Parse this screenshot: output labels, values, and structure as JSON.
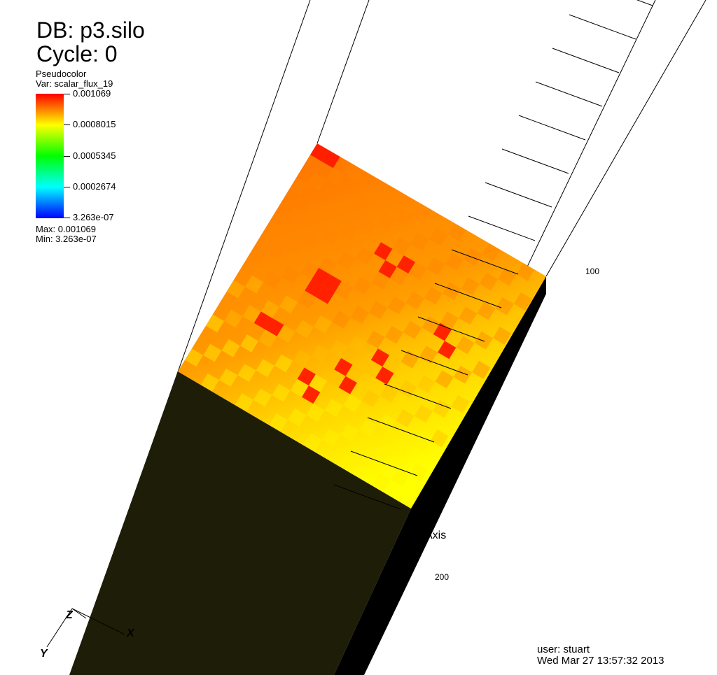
{
  "header": {
    "db": "DB: p3.silo",
    "cycle": "Cycle: 0"
  },
  "legend": {
    "plot_type": "Pseudocolor",
    "variable": "Var: scalar_flux_19",
    "ticks": [
      "0.001069",
      "0.0008015",
      "0.0005345",
      "0.0002674",
      "3.263e-07"
    ],
    "max": "Max:  0.001069",
    "min": "Min:  3.263e-07",
    "colors": [
      "#ff0000",
      "#ffff00",
      "#00ff00",
      "#00ffff",
      "#0000ff"
    ]
  },
  "axis": {
    "title": "Axis",
    "labels": [
      "100",
      "200"
    ]
  },
  "triad": {
    "x": "X",
    "y": "Y",
    "z": "Z"
  },
  "footer": {
    "user": "user: stuart",
    "date": "Wed Mar 27 13:57:32 2013"
  }
}
